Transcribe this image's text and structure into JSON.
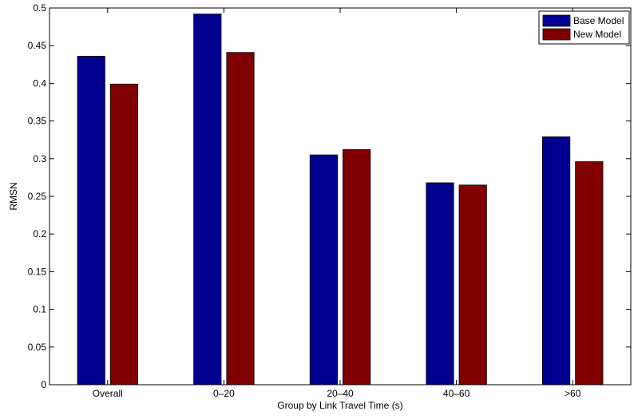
{
  "chart_data": {
    "type": "bar",
    "title": "",
    "xlabel": "Group by Link Travel Time (s)",
    "ylabel": "RMSN",
    "categories": [
      "Overall",
      "0–20",
      "20–40",
      "40–60",
      ">60"
    ],
    "series": [
      {
        "name": "Base Model",
        "color": "#00008f",
        "values": [
          0.436,
          0.492,
          0.305,
          0.268,
          0.329
        ]
      },
      {
        "name": "New Model",
        "color": "#800000",
        "values": [
          0.399,
          0.441,
          0.312,
          0.265,
          0.296
        ]
      }
    ],
    "ylim": [
      0,
      0.5
    ],
    "yticks": [
      0,
      0.05,
      0.1,
      0.15,
      0.2,
      0.25,
      0.3,
      0.35,
      0.4,
      0.45,
      0.5
    ],
    "ytick_labels": [
      "0",
      "0.05",
      "0.1",
      "0.15",
      "0.2",
      "0.25",
      "0.3",
      "0.35",
      "0.4",
      "0.45",
      "0.5"
    ],
    "grid": false,
    "legend_position": "top-right"
  }
}
